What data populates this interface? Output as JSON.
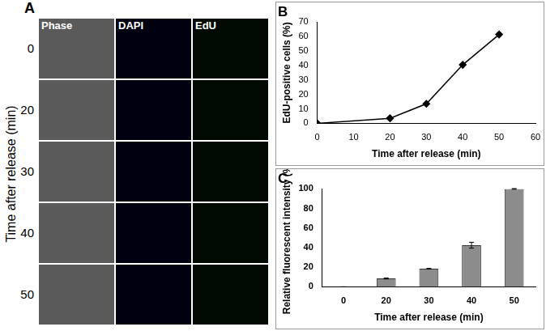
{
  "panel_a": {
    "label": "A",
    "columns": [
      "Phase",
      "DAPI",
      "EdU"
    ],
    "rows": [
      0,
      20,
      30,
      40,
      50
    ],
    "row_axis_label": "Time after release (min)"
  },
  "chart_data": [
    {
      "type": "line",
      "title": "B",
      "x_label": "Time after release (min)",
      "y_label": "EdU-positive cells (%)",
      "x": [
        0,
        20,
        30,
        40,
        50
      ],
      "values": [
        0,
        3.5,
        13.5,
        40.5,
        61.5
      ],
      "color": "#000000",
      "marker": "diamond",
      "xlim": [
        0,
        60
      ],
      "xticks": [
        0,
        10,
        20,
        30,
        40,
        50,
        60
      ],
      "ylim": [
        0,
        70
      ],
      "yticks": [
        0,
        10,
        20,
        30,
        40,
        50,
        60,
        70
      ],
      "grid": false
    },
    {
      "type": "bar",
      "title": "C",
      "x_label": "Time after release (min)",
      "y_label": "Relative fluorescent intensity (%)",
      "categories": [
        0,
        20,
        30,
        40,
        50
      ],
      "values": [
        0,
        8.5,
        18.5,
        42.5,
        100
      ],
      "errors": [
        0,
        0.5,
        0.3,
        3,
        0.3
      ],
      "color": "#8c8c8c",
      "ylim": [
        0,
        100
      ],
      "yticks": [
        0,
        20,
        40,
        60,
        80,
        100
      ],
      "grid": false
    }
  ]
}
